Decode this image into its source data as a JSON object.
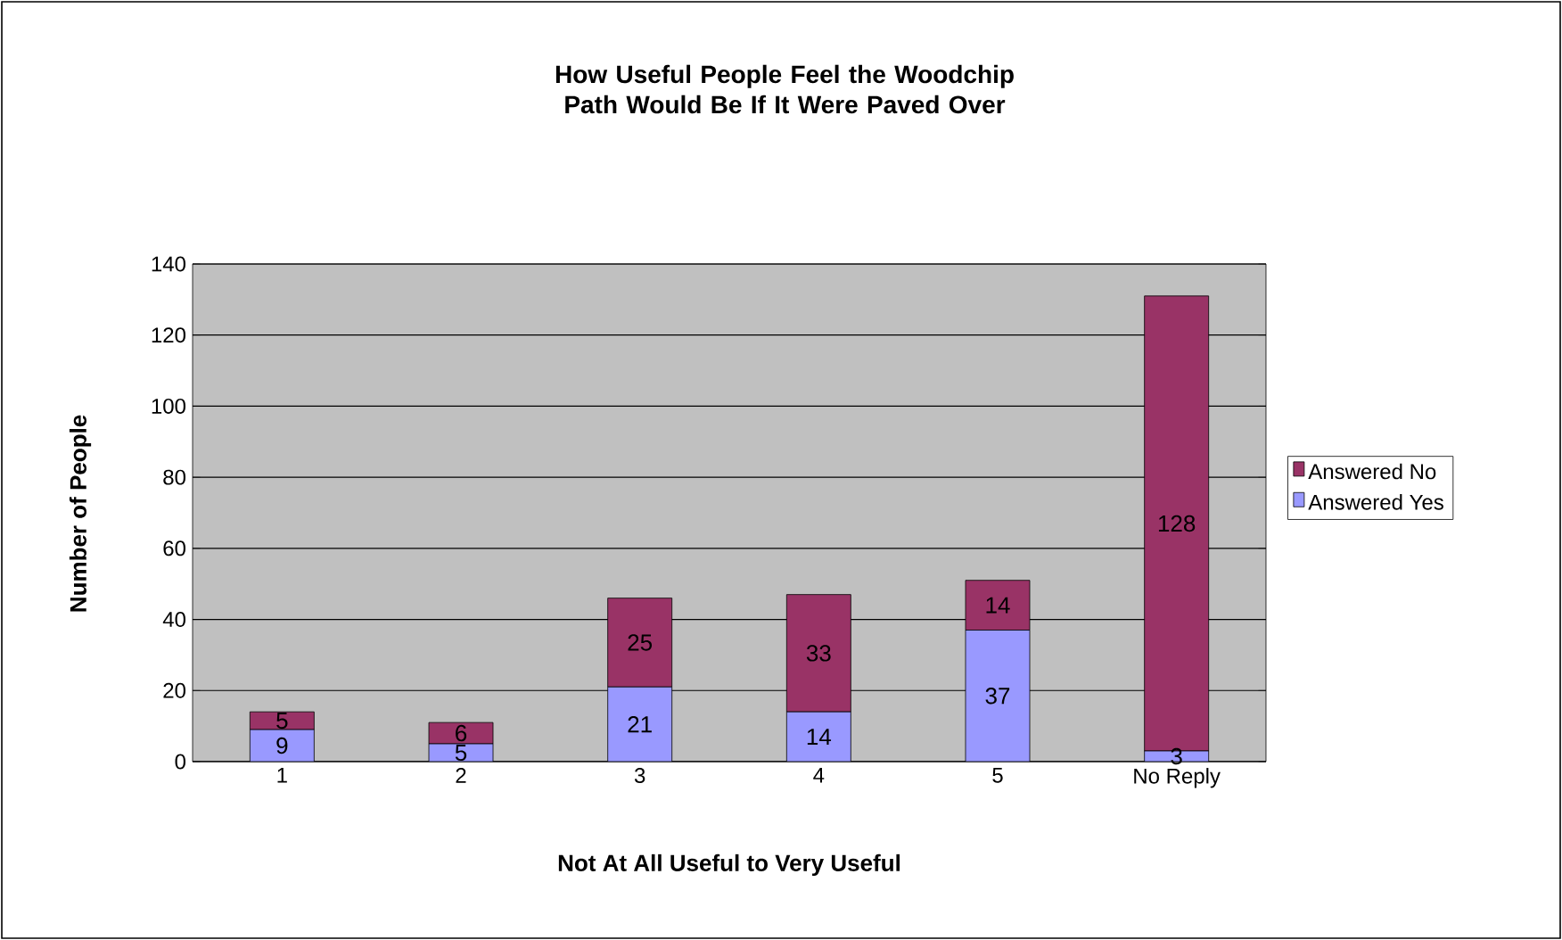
{
  "chart_data": {
    "type": "bar",
    "stacked": true,
    "title": "How Useful People Feel the Woodchip Path Would Be If It Were Paved Over",
    "xlabel": "Not At All Useful to Very Useful",
    "ylabel": "Number of People",
    "categories": [
      "1",
      "2",
      "3",
      "4",
      "5",
      "No Reply"
    ],
    "series": [
      {
        "name": "Answered Yes",
        "color": "#9999ff",
        "values": [
          9,
          5,
          21,
          14,
          37,
          3
        ]
      },
      {
        "name": "Answered No",
        "color": "#993366",
        "values": [
          5,
          6,
          25,
          33,
          14,
          128
        ]
      }
    ],
    "ylim": [
      0,
      140
    ],
    "yticks": [
      0,
      20,
      40,
      60,
      80,
      100,
      120,
      140
    ],
    "grid": "y",
    "legend": "right",
    "data_labels": true
  }
}
